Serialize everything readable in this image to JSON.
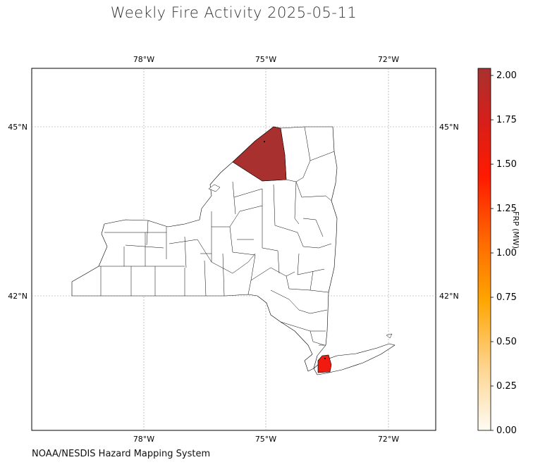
{
  "title": "Weekly Fire Activity 2025-05-11",
  "source": "NOAA/NESDIS Hazard Mapping System",
  "map": {
    "lon_ticks": [
      "78°W",
      "75°W",
      "72°W"
    ],
    "lat_ticks": [
      "45°N",
      "42°N"
    ],
    "gridlines": true,
    "region": "New York State counties",
    "highlighted": [
      {
        "area": "northern county (St. Lawrence)",
        "frp_mw": 1.95,
        "color": "#a8312f"
      },
      {
        "area": "Long Island (Suffolk, central)",
        "frp_mw": 1.45,
        "color": "#f11a0f"
      }
    ]
  },
  "colorbar": {
    "label": "FRP (MW)",
    "ticks": [
      "0.00",
      "0.25",
      "0.50",
      "0.75",
      "1.00",
      "1.25",
      "1.50",
      "1.75",
      "2.00"
    ],
    "range": [
      0,
      2.04
    ],
    "colors": [
      "#fffbf3",
      "#fdd38a",
      "#ffa500",
      "#ff6a00",
      "#ff1a00",
      "#d51f1a",
      "#a8312f"
    ]
  }
}
